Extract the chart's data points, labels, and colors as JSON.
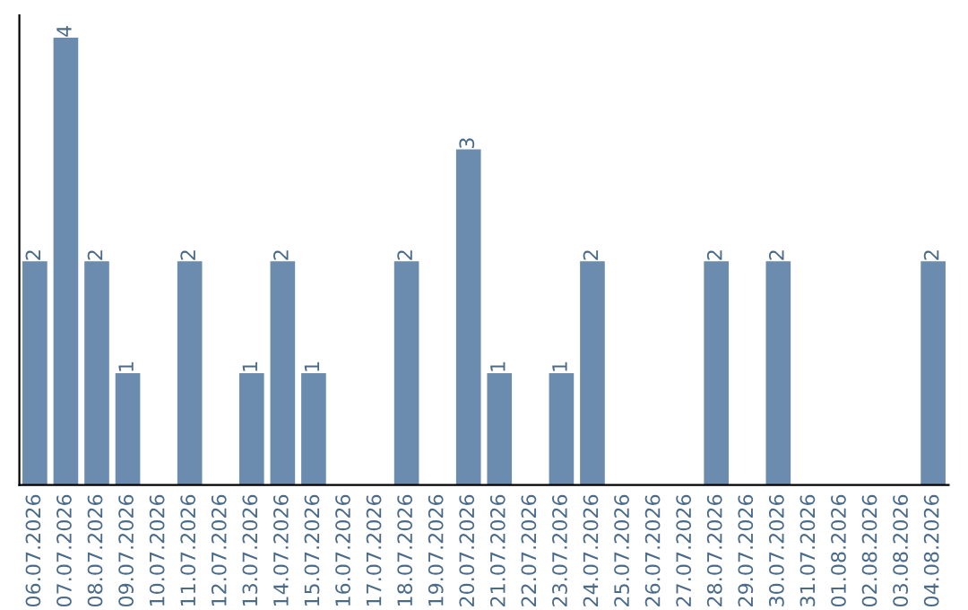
{
  "chart_data": {
    "type": "bar",
    "categories": [
      "06.07.2026",
      "07.07.2026",
      "08.07.2026",
      "09.07.2026",
      "10.07.2026",
      "11.07.2026",
      "12.07.2026",
      "13.07.2026",
      "14.07.2026",
      "15.07.2026",
      "16.07.2026",
      "17.07.2026",
      "18.07.2026",
      "19.07.2026",
      "20.07.2026",
      "21.07.2026",
      "22.07.2026",
      "23.07.2026",
      "24.07.2026",
      "25.07.2026",
      "26.07.2026",
      "27.07.2026",
      "28.07.2026",
      "29.07.2026",
      "30.07.2026",
      "31.07.2026",
      "01.08.2026",
      "02.08.2026",
      "03.08.2026",
      "04.08.2026"
    ],
    "values": [
      2,
      4,
      2,
      1,
      0,
      2,
      0,
      1,
      2,
      1,
      0,
      0,
      2,
      0,
      3,
      1,
      0,
      1,
      2,
      0,
      0,
      0,
      2,
      0,
      2,
      0,
      0,
      0,
      0,
      2
    ],
    "value_labels": [
      "2",
      "4",
      "2",
      "1",
      null,
      "2",
      null,
      "1",
      "2",
      "1",
      null,
      null,
      "2",
      null,
      "3",
      "1",
      null,
      "1",
      "2",
      null,
      null,
      null,
      "2",
      null,
      "2",
      null,
      null,
      null,
      null,
      "2"
    ],
    "color": "#6b8cae",
    "tick_labels": "x",
    "grid": false,
    "legend": false
  }
}
